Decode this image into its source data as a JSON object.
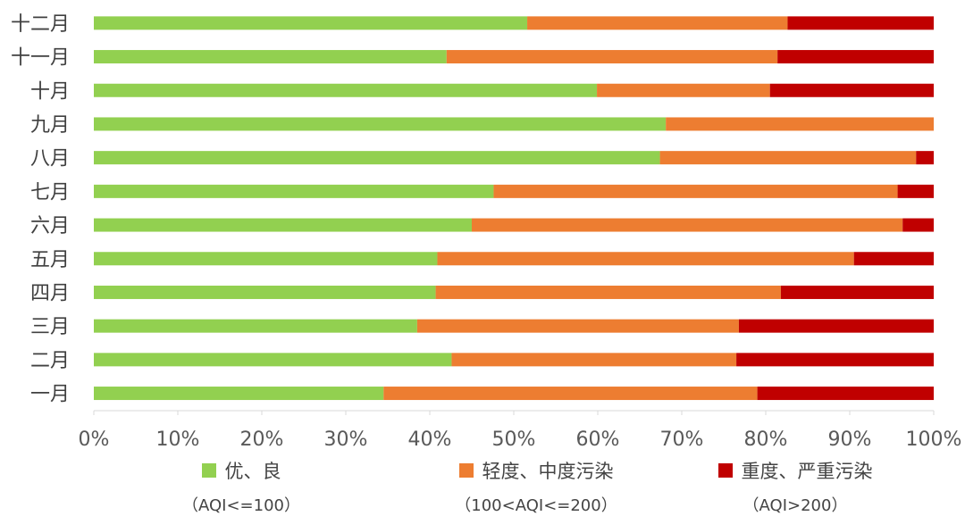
{
  "chart_data": {
    "type": "bar",
    "orientation": "horizontal",
    "stacked": true,
    "percent_stacked": true,
    "categories": [
      "十二月",
      "十一月",
      "十月",
      "九月",
      "八月",
      "七月",
      "六月",
      "五月",
      "四月",
      "三月",
      "二月",
      "一月"
    ],
    "series": [
      {
        "name": "优、良",
        "sub": "（AQI<=100）",
        "color": "#92D050",
        "values": [
          51.6,
          42.0,
          59.9,
          68.1,
          67.4,
          47.6,
          45.0,
          40.9,
          40.7,
          38.5,
          42.6,
          34.5
        ]
      },
      {
        "name": "轻度、中度污染",
        "sub": "（100<AQI<=200）",
        "color": "#ED7D31",
        "values": [
          31.0,
          39.4,
          20.6,
          31.9,
          30.5,
          48.1,
          51.3,
          49.6,
          41.1,
          38.3,
          33.9,
          44.5
        ]
      },
      {
        "name": "重度、严重污染",
        "sub": "（AQI>200）",
        "color": "#C00000",
        "values": [
          17.4,
          18.6,
          19.5,
          0.0,
          2.1,
          4.3,
          3.7,
          9.5,
          18.2,
          23.2,
          23.5,
          21.0
        ]
      }
    ],
    "xlim": [
      0,
      100
    ],
    "x_ticks": [
      "0%",
      "10%",
      "20%",
      "30%",
      "40%",
      "50%",
      "60%",
      "70%",
      "80%",
      "90%",
      "100%"
    ],
    "grid": false,
    "legend_position": "bottom"
  }
}
